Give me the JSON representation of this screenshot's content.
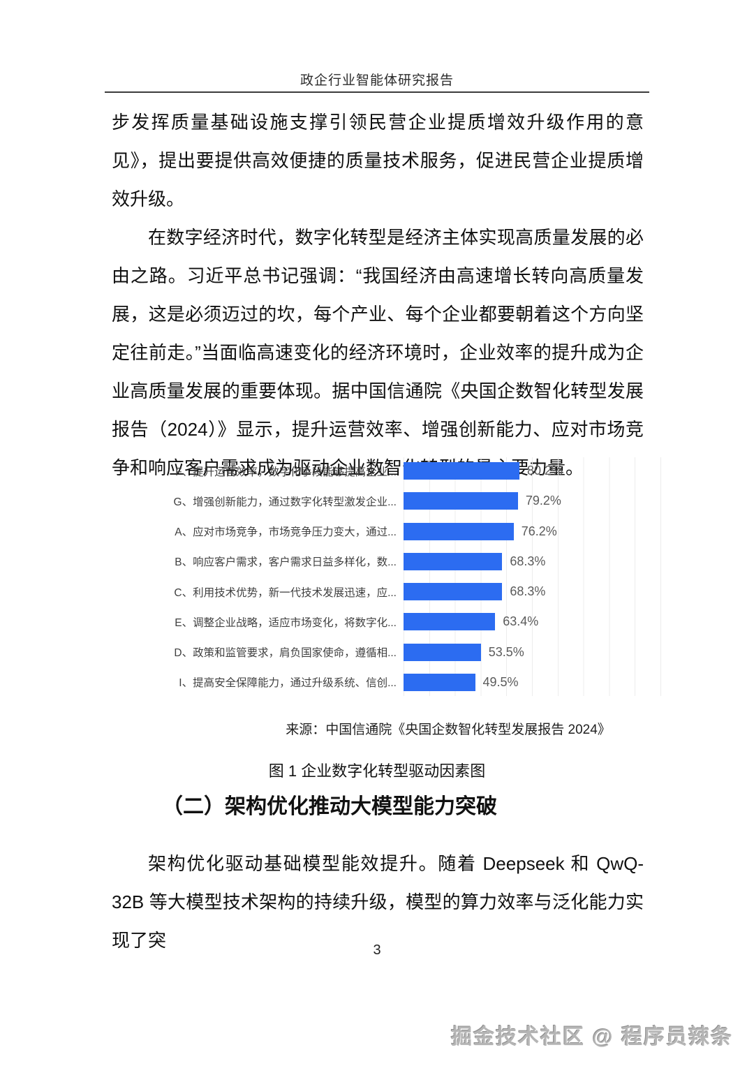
{
  "header": {
    "title": "政企行业智能体研究报告"
  },
  "body": {
    "p1": "步发挥质量基础设施支撑引领民营企业提质增效升级作用的意见》，提出要提供高效便捷的质量技术服务，促进民营企业提质增效升级。",
    "p2": "在数字经济时代，数字化转型是经济主体实现高质量发展的必由之路。习近平总书记强调：“我国经济由高速增长转向高质量发展，这是必须迈过的坎，每个产业、每个企业都要朝着这个方向坚定往前走。”当面临高速变化的经济环境时，企业效率的提升成为企业高质量发展的重要体现。据中国信通院《央国企数智化转型发展报告（2024）》显示，提升运营效率、增强创新能力、应对市场竞争和响应客户需求成为驱动企业数智化转型的最主要力量。",
    "section_heading": "（二）架构优化推动大模型能力突破",
    "p3": "架构优化驱动基础模型能效提升。随着 Deepseek 和 QwQ-32B 等大模型技术架构的持续升级，模型的算力效率与泛化能力实现了突"
  },
  "chart": {
    "source": "来源：中国信通院《央国企数智化转型发展报告 2024》",
    "caption": "图 1 企业数字化转型驱动因素图"
  },
  "chart_data": {
    "type": "bar",
    "orientation": "horizontal",
    "title": "企业数字化转型驱动因素图",
    "xlabel": "",
    "ylabel": "",
    "xlim": [
      0,
      100
    ],
    "grid": true,
    "bar_color": "#2c6cf1",
    "categories": [
      "F、提升运营效率，数字化手段能够提高企业...",
      "G、增强创新能力，通过数字化转型激发企业...",
      "A、应对市场竞争，市场竞争压力变大，通过...",
      "B、响应客户需求，客户需求日益多样化，数...",
      "C、利用技术优势，新一代技术发展迅速，应...",
      "E、调整企业战略，适应市场变化，将数字化...",
      "D、政策和监管要求，肩负国家使命，遵循相...",
      "I、提高安全保障能力，通过升级系统、信创..."
    ],
    "values": [
      80.2,
      79.2,
      76.2,
      68.3,
      68.3,
      63.4,
      53.5,
      49.5
    ],
    "rows": [
      {
        "label": "F、提升运营效率，数字化手段能够提高企业...",
        "value": 80.2,
        "value_label": "80.2%"
      },
      {
        "label": "G、增强创新能力，通过数字化转型激发企业...",
        "value": 79.2,
        "value_label": "79.2%"
      },
      {
        "label": "A、应对市场竞争，市场竞争压力变大，通过...",
        "value": 76.2,
        "value_label": "76.2%"
      },
      {
        "label": "B、响应客户需求，客户需求日益多样化，数...",
        "value": 68.3,
        "value_label": "68.3%"
      },
      {
        "label": "C、利用技术优势，新一代技术发展迅速，应...",
        "value": 68.3,
        "value_label": "68.3%"
      },
      {
        "label": "E、调整企业战略，适应市场变化，将数字化...",
        "value": 63.4,
        "value_label": "63.4%"
      },
      {
        "label": "D、政策和监管要求，肩负国家使命，遵循相...",
        "value": 53.5,
        "value_label": "53.5%"
      },
      {
        "label": "I、提高安全保障能力，通过升级系统、信创...",
        "value": 49.5,
        "value_label": "49.5%"
      }
    ]
  },
  "footer": {
    "page_number": "3"
  },
  "watermark": {
    "text": "掘金技术社区 @ 程序员辣条"
  }
}
